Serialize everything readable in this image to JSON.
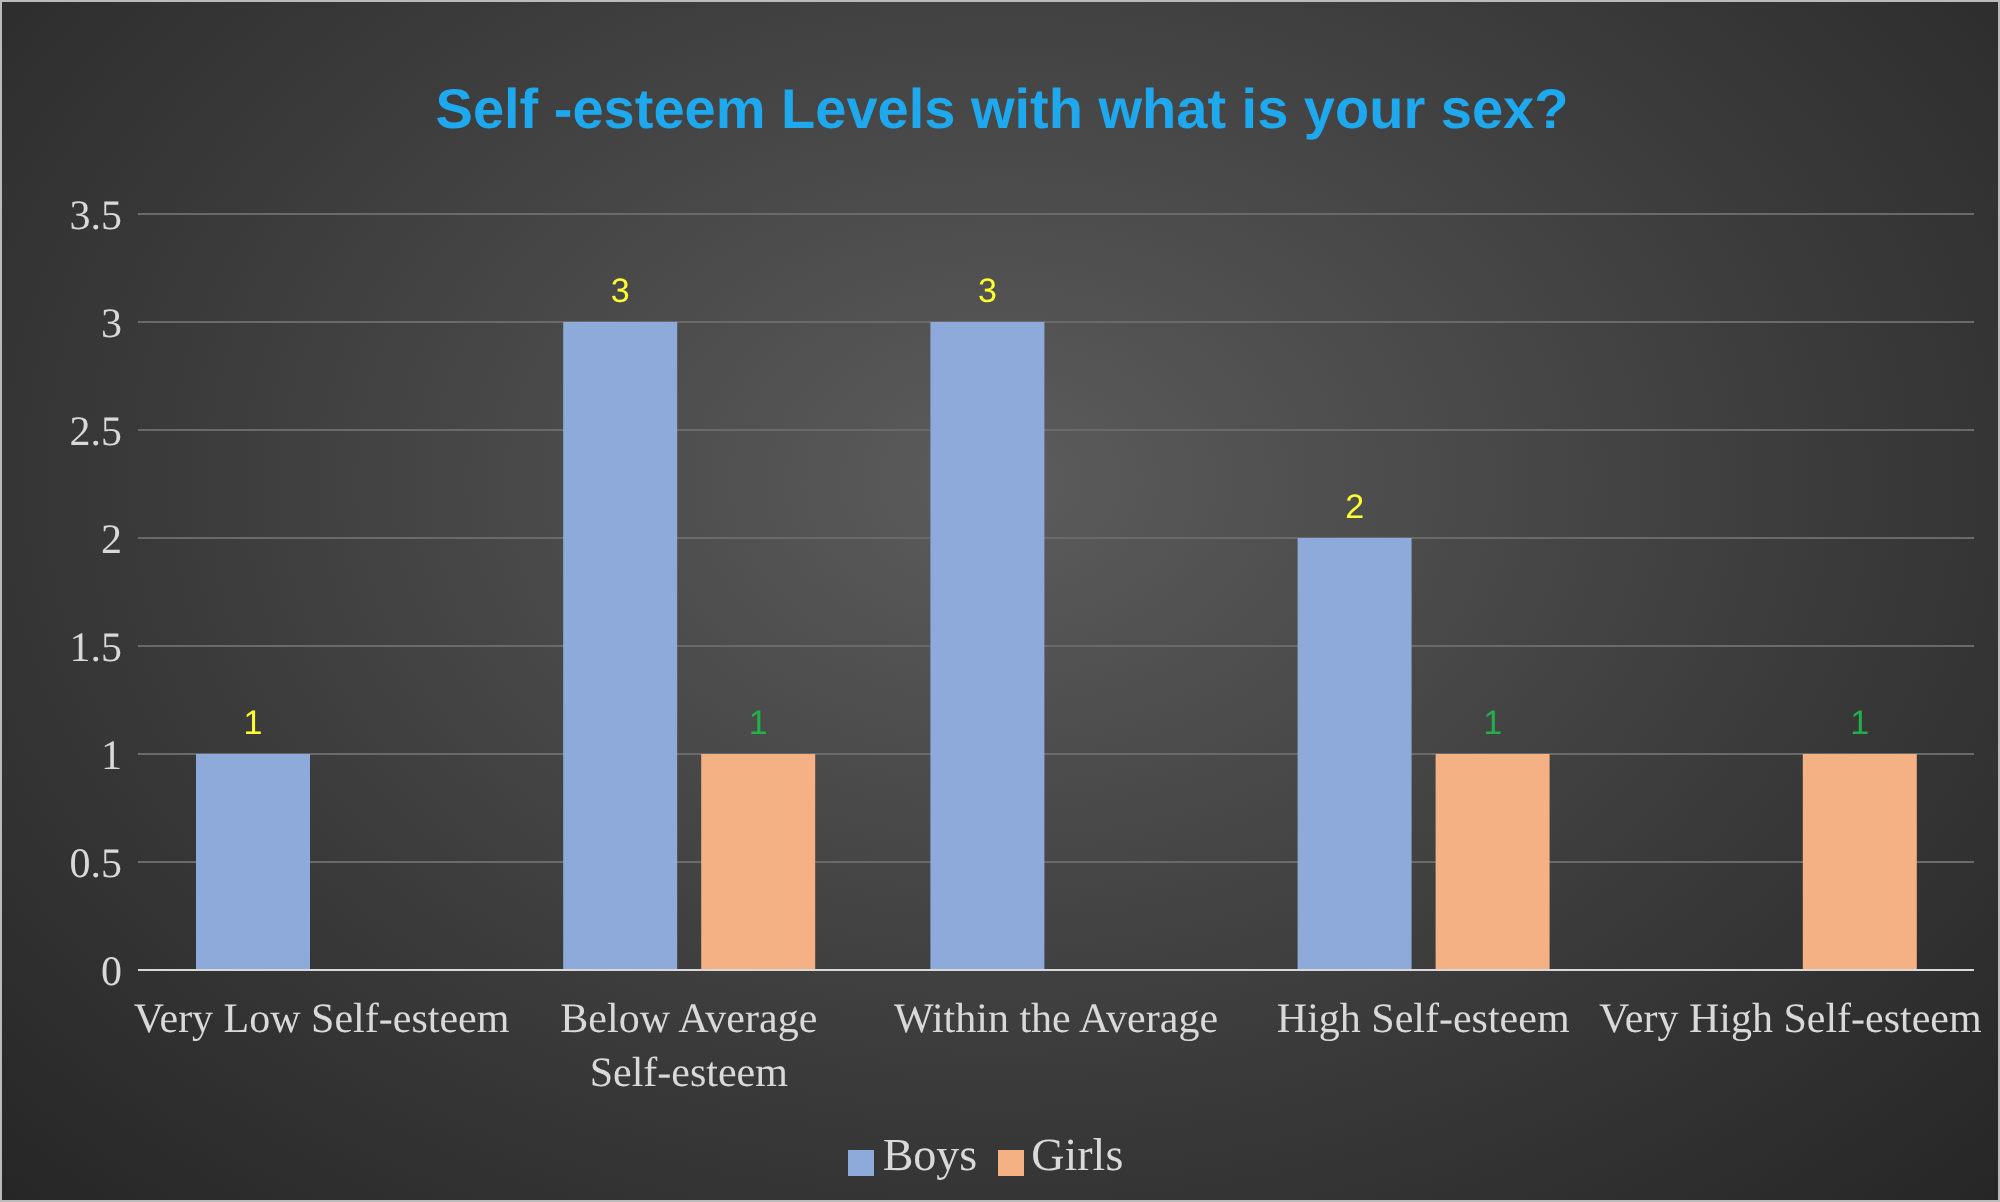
{
  "chart_data": {
    "type": "bar",
    "title": "Self -esteem Levels with what is your sex?",
    "categories": [
      "Very Low Self-esteem",
      "Below Average Self-esteem",
      "Within the Average",
      "High Self-esteem",
      "Very High Self-esteem"
    ],
    "series": [
      {
        "name": "Boys",
        "color": "#8eaadb",
        "values": [
          1,
          3,
          3,
          2,
          null
        ],
        "value_labels": [
          "1",
          "3",
          "3",
          "2",
          null
        ]
      },
      {
        "name": "Girls",
        "color": "#f4b183",
        "values": [
          null,
          1,
          null,
          1,
          1
        ],
        "value_labels": [
          null,
          "1",
          null,
          "1",
          "1"
        ]
      }
    ],
    "ylim": [
      0,
      3.5
    ],
    "yticks": [
      0,
      0.5,
      1,
      1.5,
      2,
      2.5,
      3,
      3.5
    ],
    "grid": "y",
    "legend": "bottom"
  }
}
